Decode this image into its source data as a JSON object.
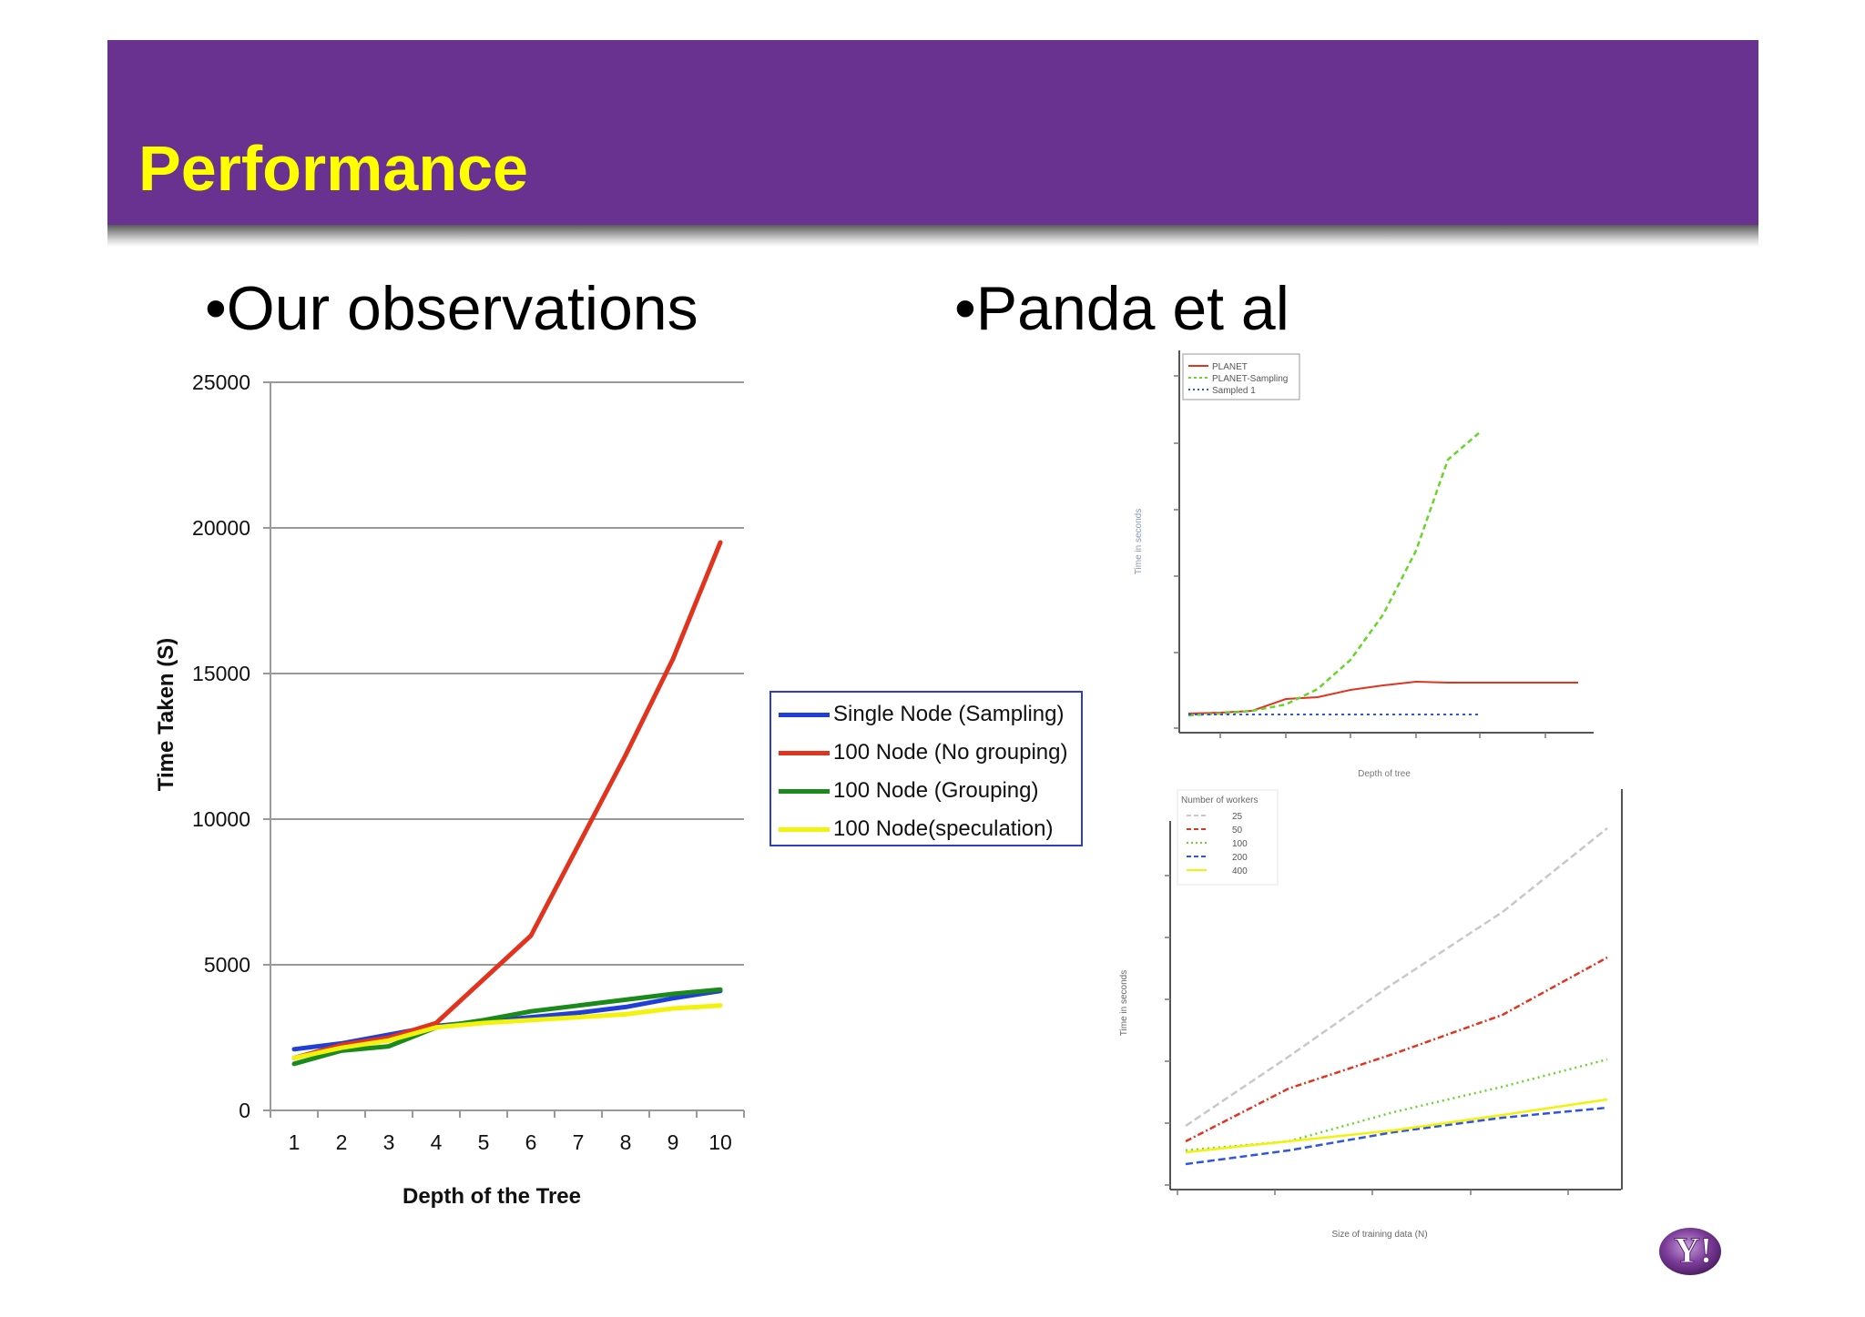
{
  "slide": {
    "title": "Performance",
    "bullets": [
      "•Our observations",
      "•Panda et al"
    ]
  },
  "chart_data": {
    "type": "line",
    "title": "",
    "xlabel": "Depth of the Tree",
    "ylabel": "Time Taken (S)",
    "x": [
      1,
      2,
      3,
      4,
      5,
      6,
      7,
      8,
      9,
      10
    ],
    "ylim": [
      0,
      25000
    ],
    "yticks": [
      0,
      5000,
      10000,
      15000,
      20000,
      25000
    ],
    "grid": true,
    "legend_position": "right",
    "series": [
      {
        "name": "Single Node (Sampling)",
        "color": "#1f3fd6",
        "values": [
          2100,
          2300,
          2600,
          2900,
          3050,
          3200,
          3350,
          3550,
          3850,
          4100
        ]
      },
      {
        "name": "100 Node (No grouping)",
        "color": "#e0341f",
        "values": [
          1800,
          2250,
          2500,
          3000,
          4500,
          6000,
          9100,
          12200,
          15500,
          19500
        ]
      },
      {
        "name": "100 Node (Grouping)",
        "color": "#1a8a1a",
        "values": [
          1600,
          2050,
          2200,
          2850,
          3100,
          3400,
          3600,
          3800,
          4000,
          4150
        ]
      },
      {
        "name": "100 Node(speculation)",
        "color": "#f2f20a",
        "values": [
          1800,
          2150,
          2400,
          2850,
          3000,
          3100,
          3200,
          3300,
          3500,
          3600
        ]
      }
    ]
  },
  "figures": {
    "top_right": {
      "ylabel": "Time in seconds",
      "xlabel": "Depth of tree",
      "legend": [
        "PLANET",
        "PLANET-Sampling",
        "Sampled 1"
      ],
      "colors": [
        "#e0341f",
        "#66d62a",
        "#2f55e0"
      ]
    },
    "bottom_right": {
      "legend_title": "Number of workers",
      "legend": [
        "25",
        "50",
        "100",
        "200",
        "400"
      ],
      "colors": [
        "#c8c8c8",
        "#e0341f",
        "#66d62a",
        "#2f55e0",
        "#f2f20a"
      ],
      "ylabel": "Time in seconds",
      "xlabel": "Size of training data (N)"
    }
  },
  "logo": {
    "text": "Y!"
  }
}
